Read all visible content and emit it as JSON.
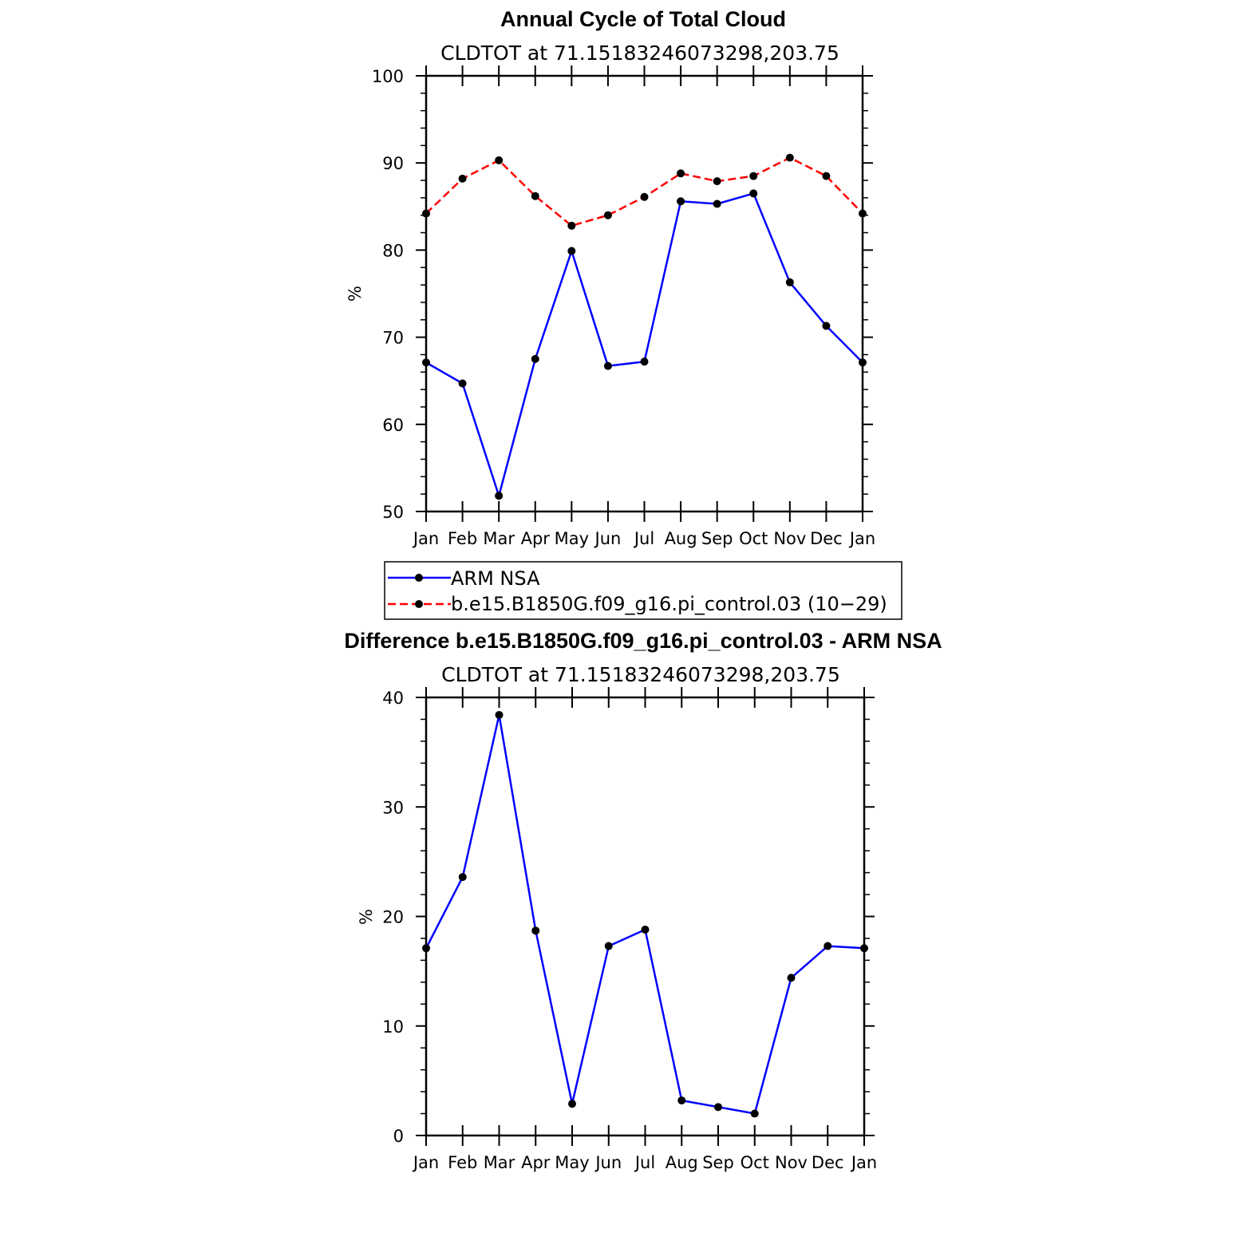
{
  "chart_data": [
    {
      "type": "line",
      "title": "Annual Cycle of Total Cloud",
      "subtitle": "CLDTOT at 71.15183246073298,203.75",
      "xlabel": "",
      "ylabel": "%",
      "ylim": [
        50,
        100
      ],
      "yticks": [
        "50",
        "60",
        "70",
        "80",
        "90",
        "100"
      ],
      "categories": [
        "Jan",
        "Feb",
        "Mar",
        "Apr",
        "May",
        "Jun",
        "Jul",
        "Aug",
        "Sep",
        "Oct",
        "Nov",
        "Dec",
        "Jan"
      ],
      "series": [
        {
          "name": "ARM NSA",
          "color": "#0000ff",
          "dash": false,
          "values": [
            67.1,
            64.7,
            51.8,
            67.5,
            79.9,
            66.7,
            67.2,
            85.6,
            85.3,
            86.5,
            76.3,
            71.3,
            67.1
          ]
        },
        {
          "name": "b.e15.B1850G.f09_g16.pi_control.03 (10−29)",
          "color": "#ff0000",
          "dash": true,
          "values": [
            84.2,
            88.2,
            90.3,
            86.2,
            82.8,
            84.0,
            86.1,
            88.8,
            87.9,
            88.5,
            90.6,
            88.5,
            84.2
          ]
        }
      ]
    },
    {
      "type": "line",
      "title": "Difference b.e15.B1850G.f09_g16.pi_control.03 - ARM NSA",
      "subtitle": "CLDTOT at 71.15183246073298,203.75",
      "xlabel": "",
      "ylabel": "%",
      "ylim": [
        0,
        40
      ],
      "yticks": [
        "0",
        "10",
        "20",
        "30",
        "40"
      ],
      "categories": [
        "Jan",
        "Feb",
        "Mar",
        "Apr",
        "May",
        "Jun",
        "Jul",
        "Aug",
        "Sep",
        "Oct",
        "Nov",
        "Dec",
        "Jan"
      ],
      "series": [
        {
          "name": "Difference",
          "color": "#0000ff",
          "dash": false,
          "values": [
            17.1,
            23.6,
            38.4,
            18.7,
            2.9,
            17.3,
            18.8,
            3.2,
            2.6,
            2.0,
            14.4,
            17.3,
            17.1
          ]
        }
      ]
    }
  ]
}
